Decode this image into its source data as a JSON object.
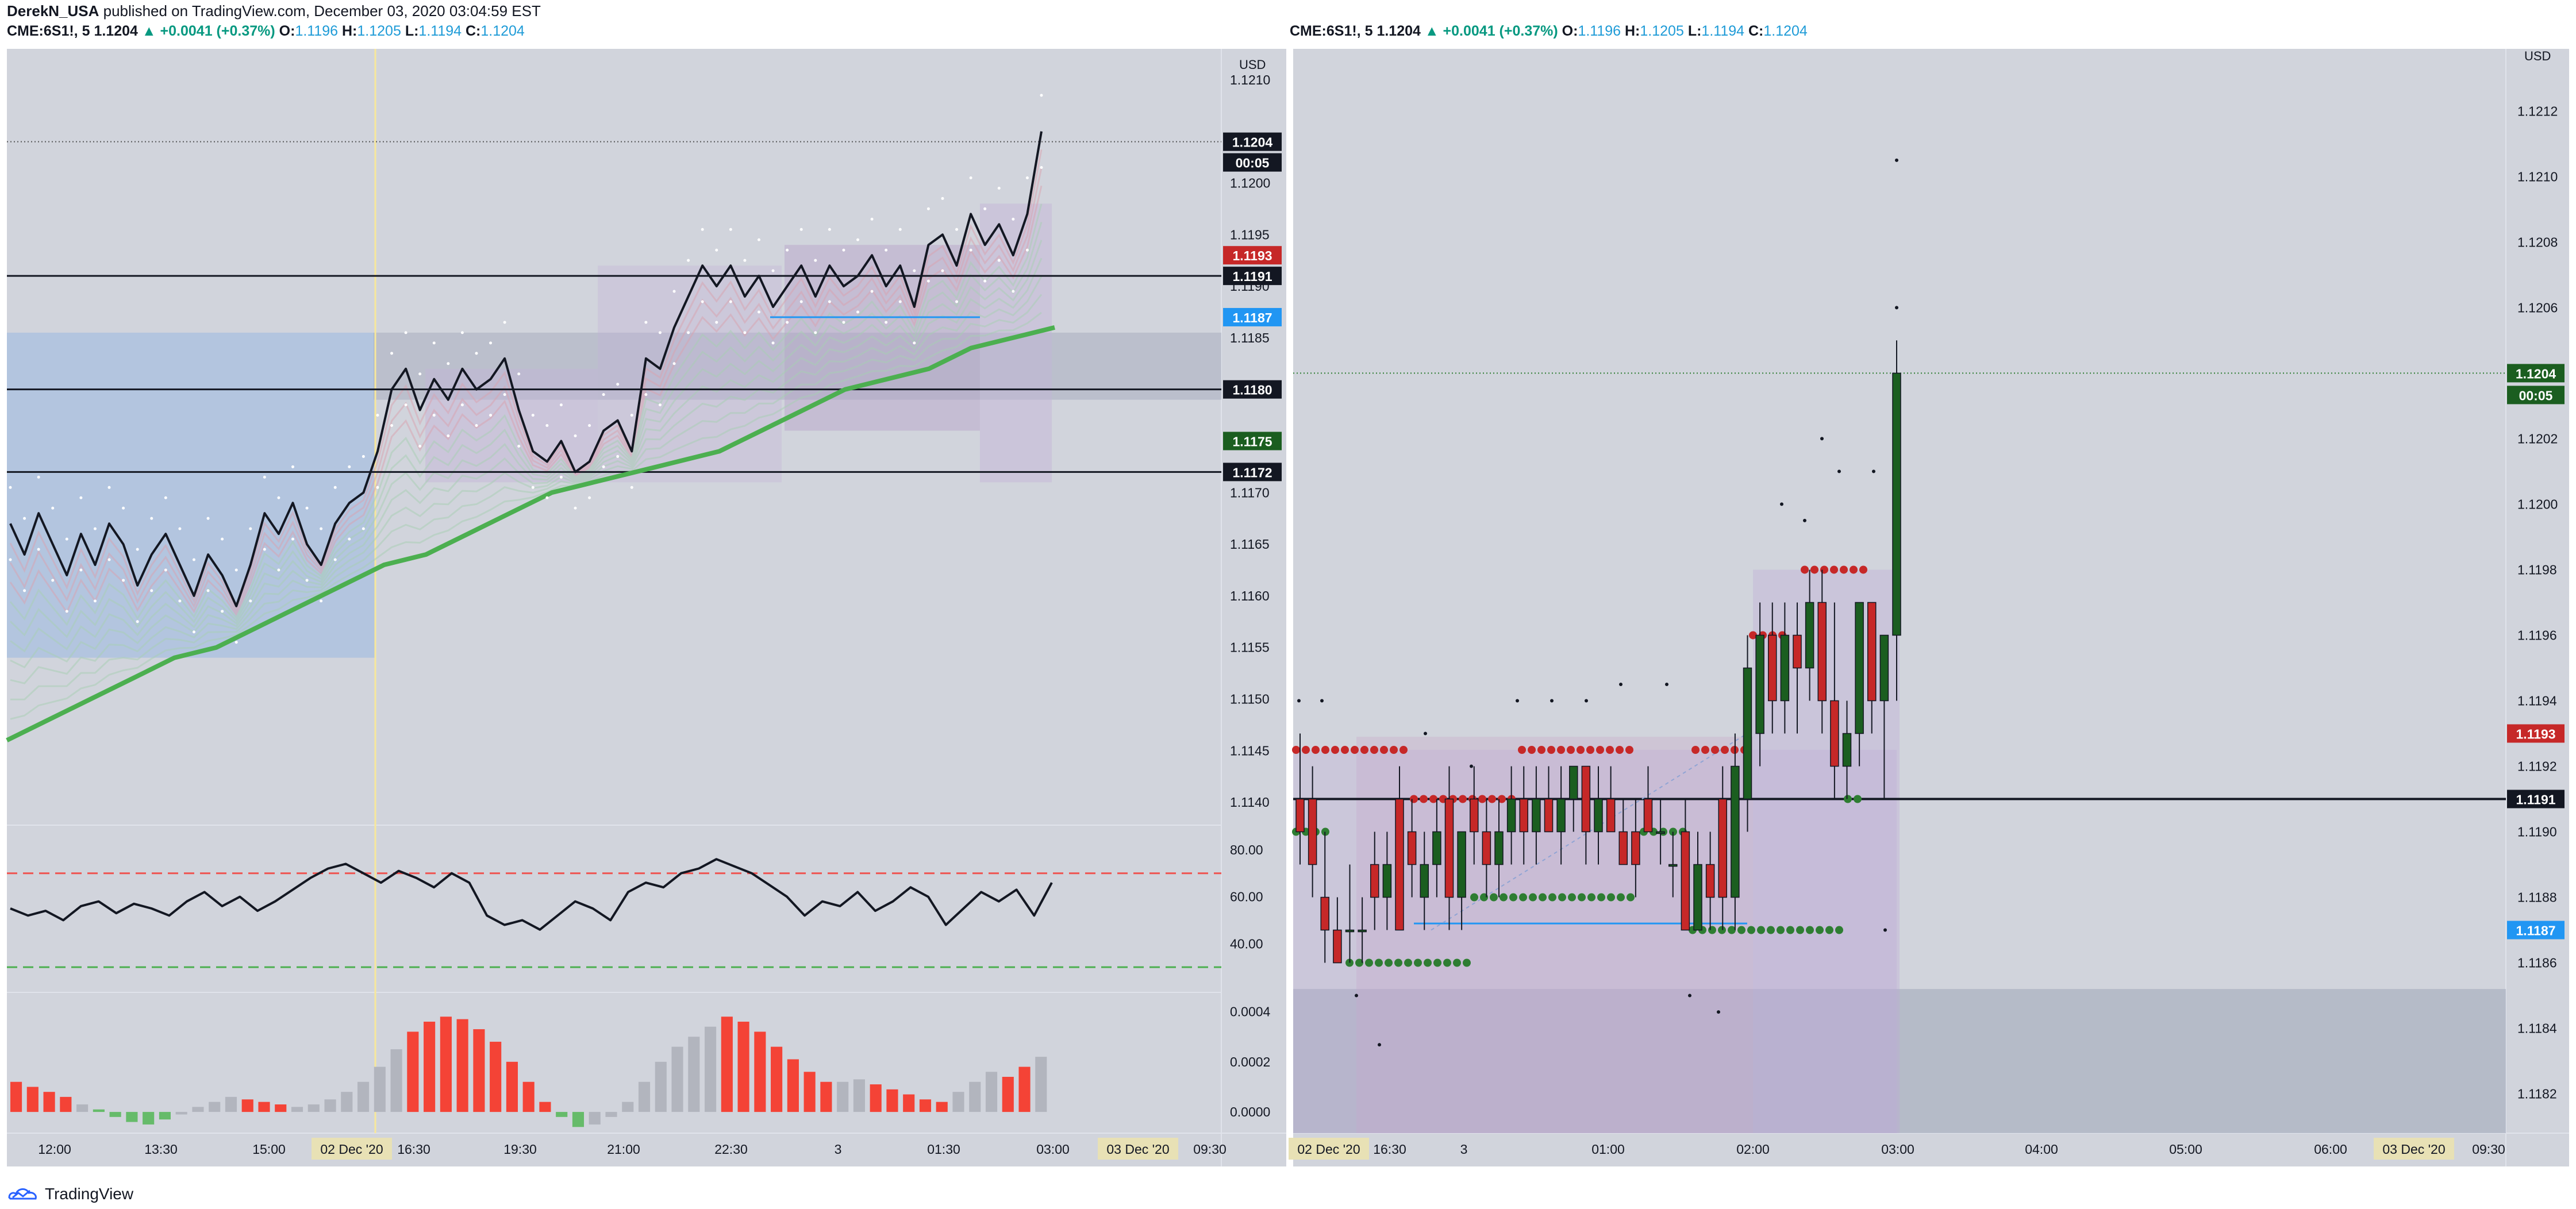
{
  "header": {
    "author": "DerekN_USA",
    "published": "published on TradingView.com, December 03, 2020 03:04:59 EST"
  },
  "legend": {
    "symbol": "CME:6S1!, 5",
    "last": "1.1204",
    "change": "▲ +0.0041 (+0.37%)",
    "o_label": "O:",
    "o": "1.1196",
    "h_label": "H:",
    "h": "1.1205",
    "l_label": "L:",
    "l": "1.1194",
    "c_label": "C:",
    "c": "1.1204"
  },
  "footer": {
    "brand": "TradingView"
  },
  "colors": {
    "bg": "#d1d4dc",
    "up": "#1b5e20",
    "down": "#c62828",
    "ema": "#4caf50",
    "blue": "#2196f3",
    "hist_red": "#f44336",
    "hist_gray": "#b2b5be",
    "hist_green": "#66bb6a"
  },
  "chart_data": [
    {
      "type": "line",
      "panel": "left",
      "currency": "USD",
      "x_tick_labels": [
        "12:00",
        "13:30",
        "15:00",
        "02 Dec '20",
        "16:30",
        "19:30",
        "21:00",
        "22:30",
        "3",
        "01:30",
        "03:00",
        "03 Dec '20",
        "09:30"
      ],
      "y_tick_labels": [
        "1.1210",
        "1.1200",
        "1.1195",
        "1.1190",
        "1.1185",
        "1.1170",
        "1.1165",
        "1.1160",
        "1.1155",
        "1.1150",
        "1.1145",
        "1.1140"
      ],
      "ylim": [
        1.1138,
        1.1213
      ],
      "price": [
        1.1167,
        1.1164,
        1.1168,
        1.1165,
        1.1162,
        1.1166,
        1.1163,
        1.1167,
        1.1165,
        1.1161,
        1.1164,
        1.1166,
        1.1163,
        1.116,
        1.1164,
        1.1162,
        1.1159,
        1.1163,
        1.1168,
        1.1166,
        1.1169,
        1.1165,
        1.1163,
        1.1167,
        1.1169,
        1.117,
        1.1174,
        1.118,
        1.1182,
        1.1178,
        1.1181,
        1.1179,
        1.1182,
        1.118,
        1.1181,
        1.1183,
        1.1178,
        1.1174,
        1.1173,
        1.1175,
        1.1172,
        1.1173,
        1.1176,
        1.1177,
        1.1174,
        1.1183,
        1.1182,
        1.1186,
        1.1189,
        1.1192,
        1.119,
        1.1192,
        1.1189,
        1.1191,
        1.1188,
        1.119,
        1.1192,
        1.1189,
        1.1192,
        1.119,
        1.1191,
        1.1193,
        1.119,
        1.1192,
        1.1188,
        1.1194,
        1.1195,
        1.1192,
        1.1197,
        1.1194,
        1.1196,
        1.1193,
        1.1197,
        1.1205
      ],
      "ema": [
        1.1146,
        1.1148,
        1.115,
        1.1152,
        1.1154,
        1.1155,
        1.1157,
        1.1159,
        1.1161,
        1.1163,
        1.1164,
        1.1166,
        1.1168,
        1.117,
        1.1171,
        1.1172,
        1.1173,
        1.1174,
        1.1176,
        1.1178,
        1.118,
        1.1181,
        1.1182,
        1.1184,
        1.1185,
        1.1186
      ],
      "levels": [
        1.1191,
        1.118,
        1.1172
      ],
      "labels": [
        {
          "value": "1.1204",
          "kind": "last"
        },
        {
          "value": "00:05",
          "kind": "countdown"
        },
        {
          "value": "1.1193",
          "kind": "red"
        },
        {
          "value": "1.1191",
          "kind": "black"
        },
        {
          "value": "1.1187",
          "kind": "blue"
        },
        {
          "value": "1.1180",
          "kind": "black"
        },
        {
          "value": "1.1175",
          "kind": "green"
        },
        {
          "value": "1.1172",
          "kind": "black"
        }
      ],
      "rsi": {
        "ticks": [
          "80.00",
          "60.00",
          "40.00"
        ],
        "upper": 70,
        "lower": 30,
        "values": [
          55,
          52,
          54,
          50,
          56,
          58,
          53,
          57,
          55,
          52,
          58,
          62,
          56,
          60,
          54,
          58,
          63,
          68,
          72,
          74,
          70,
          66,
          71,
          68,
          64,
          70,
          66,
          52,
          48,
          50,
          46,
          52,
          58,
          55,
          50,
          62,
          66,
          64,
          70,
          72,
          76,
          73,
          70,
          65,
          60,
          52,
          58,
          56,
          62,
          54,
          58,
          64,
          60,
          48,
          55,
          62,
          58,
          63,
          52,
          66
        ]
      },
      "macd": {
        "ticks": [
          "0.0004",
          "0.0002",
          "0.0000"
        ],
        "values": [
          0.00012,
          0.0001,
          8e-05,
          6e-05,
          3e-05,
          1e-05,
          -2e-05,
          -4e-05,
          -5e-05,
          -3e-05,
          -1e-05,
          2e-05,
          4e-05,
          6e-05,
          5e-05,
          4e-05,
          3e-05,
          2e-05,
          3e-05,
          5e-05,
          8e-05,
          0.00012,
          0.00018,
          0.00025,
          0.00032,
          0.00036,
          0.00038,
          0.00037,
          0.00033,
          0.00028,
          0.0002,
          0.00012,
          4e-05,
          -2e-05,
          -6e-05,
          -5e-05,
          -2e-05,
          4e-05,
          0.00012,
          0.0002,
          0.00026,
          0.0003,
          0.00034,
          0.00038,
          0.00036,
          0.00032,
          0.00026,
          0.00021,
          0.00016,
          0.00012,
          0.00012,
          0.00013,
          0.00011,
          9e-05,
          7e-05,
          5e-05,
          4e-05,
          8e-05,
          0.00012,
          0.00016,
          0.00014,
          0.00018,
          0.00022
        ],
        "colors": [
          "red",
          "red",
          "red",
          "red",
          "gray",
          "green",
          "green",
          "green",
          "green",
          "green",
          "gray",
          "gray",
          "gray",
          "gray",
          "red",
          "red",
          "red",
          "gray",
          "gray",
          "gray",
          "gray",
          "gray",
          "gray",
          "gray",
          "red",
          "red",
          "red",
          "red",
          "red",
          "red",
          "red",
          "red",
          "red",
          "green",
          "green",
          "gray",
          "gray",
          "gray",
          "gray",
          "gray",
          "gray",
          "gray",
          "gray",
          "red",
          "red",
          "red",
          "red",
          "red",
          "red",
          "red",
          "gray",
          "gray",
          "red",
          "red",
          "red",
          "red",
          "red",
          "gray",
          "gray",
          "gray",
          "red",
          "red",
          "gray"
        ]
      }
    },
    {
      "type": "candlestick",
      "panel": "right",
      "currency": "USD",
      "x_tick_labels": [
        "02 Dec '20",
        "16:30",
        "3",
        "01:00",
        "02:00",
        "03:00",
        "04:00",
        "05:00",
        "06:00",
        "03 Dec '20",
        "09:30"
      ],
      "y_tick_labels": [
        "1.1212",
        "1.1210",
        "1.1208",
        "1.1206",
        "1.1202",
        "1.1200",
        "1.1198",
        "1.1196",
        "1.1194",
        "1.1192",
        "1.1190",
        "1.1188",
        "1.1186",
        "1.1184",
        "1.1182"
      ],
      "ylim": [
        1.11808,
        1.12139
      ],
      "candles": [
        {
          "o": 1.1191,
          "h": 1.1193,
          "l": 1.1189,
          "c": 1.119
        },
        {
          "o": 1.1191,
          "h": 1.1192,
          "l": 1.1188,
          "c": 1.1189
        },
        {
          "o": 1.1188,
          "h": 1.119,
          "l": 1.1186,
          "c": 1.1187
        },
        {
          "o": 1.1187,
          "h": 1.1188,
          "l": 1.1186,
          "c": 1.1186
        },
        {
          "o": 1.1187,
          "h": 1.1189,
          "l": 1.1186,
          "c": 1.1187
        },
        {
          "o": 1.1187,
          "h": 1.1188,
          "l": 1.1186,
          "c": 1.1187
        },
        {
          "o": 1.1189,
          "h": 1.119,
          "l": 1.1187,
          "c": 1.1188
        },
        {
          "o": 1.1188,
          "h": 1.119,
          "l": 1.1187,
          "c": 1.1189
        },
        {
          "o": 1.1191,
          "h": 1.1192,
          "l": 1.1187,
          "c": 1.1187
        },
        {
          "o": 1.119,
          "h": 1.1191,
          "l": 1.1188,
          "c": 1.1189
        },
        {
          "o": 1.1188,
          "h": 1.119,
          "l": 1.1187,
          "c": 1.1189
        },
        {
          "o": 1.1189,
          "h": 1.1191,
          "l": 1.1188,
          "c": 1.119
        },
        {
          "o": 1.1191,
          "h": 1.1192,
          "l": 1.1187,
          "c": 1.1188
        },
        {
          "o": 1.1188,
          "h": 1.119,
          "l": 1.1187,
          "c": 1.119
        },
        {
          "o": 1.1191,
          "h": 1.1192,
          "l": 1.1189,
          "c": 1.119
        },
        {
          "o": 1.119,
          "h": 1.1191,
          "l": 1.1188,
          "c": 1.1189
        },
        {
          "o": 1.1189,
          "h": 1.1191,
          "l": 1.1188,
          "c": 1.119
        },
        {
          "o": 1.119,
          "h": 1.1192,
          "l": 1.1189,
          "c": 1.1191
        },
        {
          "o": 1.1191,
          "h": 1.1192,
          "l": 1.1189,
          "c": 1.119
        },
        {
          "o": 1.119,
          "h": 1.1192,
          "l": 1.1189,
          "c": 1.1191
        },
        {
          "o": 1.1191,
          "h": 1.1192,
          "l": 1.119,
          "c": 1.119
        },
        {
          "o": 1.119,
          "h": 1.1192,
          "l": 1.1189,
          "c": 1.1191
        },
        {
          "o": 1.1191,
          "h": 1.1192,
          "l": 1.119,
          "c": 1.1192
        },
        {
          "o": 1.1192,
          "h": 1.1192,
          "l": 1.1189,
          "c": 1.119
        },
        {
          "o": 1.119,
          "h": 1.1192,
          "l": 1.1189,
          "c": 1.1191
        },
        {
          "o": 1.1191,
          "h": 1.1192,
          "l": 1.119,
          "c": 1.119
        },
        {
          "o": 1.119,
          "h": 1.1191,
          "l": 1.1189,
          "c": 1.1189
        },
        {
          "o": 1.119,
          "h": 1.1191,
          "l": 1.1188,
          "c": 1.1189
        },
        {
          "o": 1.1191,
          "h": 1.1192,
          "l": 1.119,
          "c": 1.119
        },
        {
          "o": 1.119,
          "h": 1.1191,
          "l": 1.1189,
          "c": 1.119
        },
        {
          "o": 1.1189,
          "h": 1.119,
          "l": 1.1188,
          "c": 1.1189
        },
        {
          "o": 1.119,
          "h": 1.1191,
          "l": 1.1187,
          "c": 1.1187
        },
        {
          "o": 1.1187,
          "h": 1.119,
          "l": 1.1187,
          "c": 1.1189
        },
        {
          "o": 1.1189,
          "h": 1.119,
          "l": 1.1187,
          "c": 1.1188
        },
        {
          "o": 1.1191,
          "h": 1.1192,
          "l": 1.1187,
          "c": 1.1188
        },
        {
          "o": 1.1188,
          "h": 1.1193,
          "l": 1.1187,
          "c": 1.1192
        },
        {
          "o": 1.1191,
          "h": 1.1196,
          "l": 1.119,
          "c": 1.1195
        },
        {
          "o": 1.1193,
          "h": 1.1197,
          "l": 1.1192,
          "c": 1.1196
        },
        {
          "o": 1.1196,
          "h": 1.1197,
          "l": 1.1193,
          "c": 1.1194
        },
        {
          "o": 1.1194,
          "h": 1.1197,
          "l": 1.1193,
          "c": 1.1196
        },
        {
          "o": 1.1196,
          "h": 1.1197,
          "l": 1.1193,
          "c": 1.1195
        },
        {
          "o": 1.1195,
          "h": 1.1198,
          "l": 1.1194,
          "c": 1.1197
        },
        {
          "o": 1.1197,
          "h": 1.1198,
          "l": 1.1193,
          "c": 1.1194
        },
        {
          "o": 1.1194,
          "h": 1.1197,
          "l": 1.1191,
          "c": 1.1192
        },
        {
          "o": 1.1192,
          "h": 1.1194,
          "l": 1.1191,
          "c": 1.1193
        },
        {
          "o": 1.1193,
          "h": 1.1197,
          "l": 1.1192,
          "c": 1.1197
        },
        {
          "o": 1.1197,
          "h": 1.1197,
          "l": 1.1193,
          "c": 1.1194
        },
        {
          "o": 1.1194,
          "h": 1.1196,
          "l": 1.1191,
          "c": 1.1196
        },
        {
          "o": 1.1196,
          "h": 1.1205,
          "l": 1.1194,
          "c": 1.1204
        }
      ],
      "labels": [
        {
          "value": "1.1204",
          "kind": "green"
        },
        {
          "value": "00:05",
          "kind": "countdown"
        },
        {
          "value": "1.1193",
          "kind": "red"
        },
        {
          "value": "1.1191",
          "kind": "black"
        },
        {
          "value": "1.1187",
          "kind": "blue"
        }
      ],
      "level": 1.1191
    }
  ]
}
